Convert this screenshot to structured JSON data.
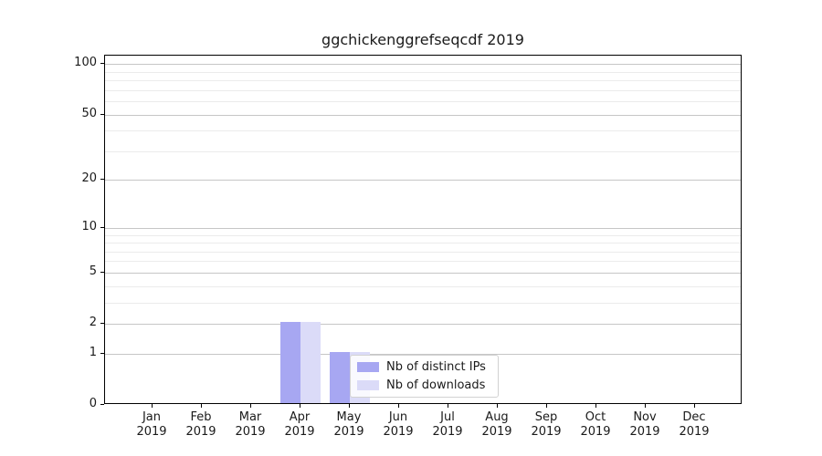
{
  "chart_data": {
    "type": "bar",
    "title": "ggchickenggrefseqcdf 2019",
    "categories": [
      "Jan 2019",
      "Feb 2019",
      "Mar 2019",
      "Apr 2019",
      "May 2019",
      "Jun 2019",
      "Jul 2019",
      "Aug 2019",
      "Sep 2019",
      "Oct 2019",
      "Nov 2019",
      "Dec 2019"
    ],
    "series": [
      {
        "name": "Nb of distinct IPs",
        "color": "#a7a7f2",
        "values": [
          0,
          0,
          0,
          2,
          1,
          0,
          0,
          0,
          0,
          0,
          0,
          0
        ]
      },
      {
        "name": "Nb of downloads",
        "color": "#dbdbf8",
        "values": [
          0,
          0,
          0,
          2,
          1,
          0,
          0,
          0,
          0,
          0,
          0,
          0
        ]
      }
    ],
    "xlabel": "",
    "ylabel": "",
    "y_scale": "log1p",
    "y_ticks": [
      0,
      1,
      2,
      5,
      10,
      20,
      50,
      100
    ],
    "y_minor_ticks": [
      3,
      4,
      6,
      7,
      8,
      9,
      30,
      40,
      60,
      70,
      80,
      90
    ],
    "ylim": [
      0,
      112
    ],
    "grid": true,
    "legend_position": "lower center-right inside plot",
    "style": {
      "grid_major_color": "#c6c6c6",
      "grid_minor_color": "#ebebeb",
      "axis_color": "#000000",
      "text_color": "#1a1a1a",
      "background": "#ffffff"
    }
  }
}
